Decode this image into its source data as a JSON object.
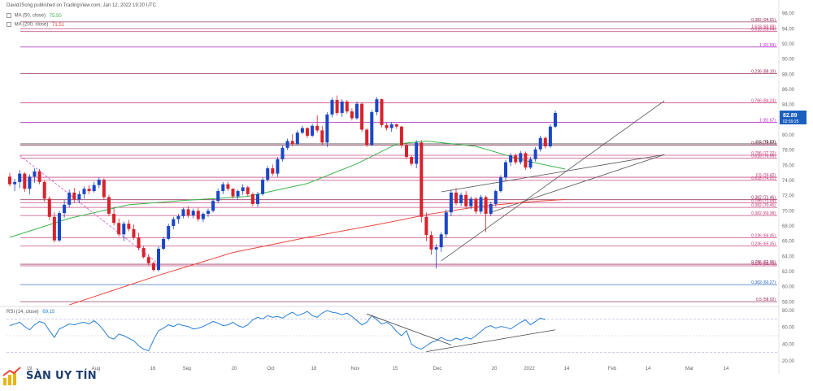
{
  "header": {
    "publisher": "DavidJSong published on TradingView.com, Jan 12, 2022 19:20 UTC"
  },
  "indicators": [
    {
      "label": "MA (50, close)",
      "value": "75.50",
      "color": "#3cb54a"
    },
    {
      "label": "MA (200, close)",
      "value": "71.51",
      "color": "#e8473c"
    }
  ],
  "rsi_legend": {
    "label": "RSI (14, close)",
    "value": "69.15"
  },
  "price_marker": {
    "value": "82.89",
    "sub": "02:59:25"
  },
  "watermark": {
    "text": "SÀN UY TÍN"
  },
  "chart_data": [
    {
      "type": "candlestick",
      "x_tick_labels": [
        "19",
        "Aug",
        "16",
        "Sep",
        "20",
        "Oct",
        "18",
        "Nov",
        "15",
        "Dec",
        "20",
        "2022",
        "14",
        "Feb",
        "14",
        "Mar",
        "14"
      ],
      "y_tick_labels": [
        "58.00",
        "60.00",
        "62.00",
        "64.00",
        "66.00",
        "68.00",
        "70.00",
        "72.00",
        "74.00",
        "76.00",
        "78.00",
        "80.00",
        "82.00",
        "84.00",
        "86.00",
        "88.00",
        "90.00",
        "92.00",
        "94.00",
        "96.00"
      ],
      "ylim": [
        57.5,
        96.5
      ],
      "levels": [
        {
          "label": "0.382 (94.91)",
          "y": 94.91,
          "color": "#8a1c4a"
        },
        {
          "label": "1.618 (93.98)",
          "y": 93.98,
          "color": "#c03070"
        },
        {
          "label": "0.618 (93.64)",
          "y": 93.64,
          "color": "#c03070"
        },
        {
          "label": "1 (91.59)",
          "y": 91.59,
          "color": "#b020c0"
        },
        {
          "label": "0.236 (88.10)",
          "y": 88.1,
          "color": "#8a1c4a"
        },
        {
          "label": "0.786 (84.24)",
          "y": 84.24,
          "color": "#c03070"
        },
        {
          "label": "1 (81.67)",
          "y": 81.67,
          "color": "#b020c0"
        },
        {
          "label": "0.5 (78.83)",
          "y": 78.83,
          "color": "#444444"
        },
        {
          "label": "0.618 (78.67)",
          "y": 78.67,
          "color": "#8a1c4a"
        },
        {
          "label": "0.786 (77.32)",
          "y": 77.32,
          "color": "#c03070"
        },
        {
          "label": "0.618 (76.96)",
          "y": 76.96,
          "color": "#c03070"
        },
        {
          "label": "0.5 (74.42)",
          "y": 74.42,
          "color": "#c03070"
        },
        {
          "label": "0.618 (74.01)",
          "y": 74.01,
          "color": "#c03070"
        },
        {
          "label": "0.382 (71.46)",
          "y": 71.46,
          "color": "#8a1c4a"
        },
        {
          "label": "0.786 (71.04)",
          "y": 71.04,
          "color": "#c03070"
        },
        {
          "label": "0.382 (70.45)",
          "y": 70.45,
          "color": "#c03070"
        },
        {
          "label": "0.382 (69.38)",
          "y": 69.38,
          "color": "#c03070"
        },
        {
          "label": "0.236 (66.45)",
          "y": 66.45,
          "color": "#c03070"
        },
        {
          "label": "0.236 (65.35)",
          "y": 65.35,
          "color": "#c03070"
        },
        {
          "label": "0.786 (62.96)",
          "y": 62.96,
          "color": "#8a1c4a"
        },
        {
          "label": "0.236 (62.75)",
          "y": 62.75,
          "color": "#c03070"
        },
        {
          "label": "0.382 (60.27)",
          "y": 60.27,
          "color": "#1f5fc0"
        },
        {
          "label": "0.5 (58.02)",
          "y": 58.02,
          "color": "#8a1c4a"
        }
      ],
      "candles": [
        [
          74.5,
          75.0,
          73.2,
          73.5
        ],
        [
          73.5,
          74.2,
          72.6,
          73.8
        ],
        [
          73.8,
          75.4,
          73.0,
          74.9
        ],
        [
          74.9,
          75.1,
          72.5,
          72.9
        ],
        [
          72.9,
          74.8,
          72.2,
          74.5
        ],
        [
          74.5,
          75.6,
          73.7,
          75.2
        ],
        [
          75.2,
          75.5,
          73.5,
          73.8
        ],
        [
          73.8,
          74.0,
          71.2,
          71.6
        ],
        [
          71.6,
          71.9,
          68.8,
          69.2
        ],
        [
          69.2,
          69.8,
          65.8,
          66.1
        ],
        [
          66.1,
          70.0,
          65.9,
          69.7
        ],
        [
          69.7,
          71.4,
          69.1,
          70.8
        ],
        [
          70.8,
          72.8,
          70.4,
          72.4
        ],
        [
          72.4,
          73.0,
          71.1,
          71.5
        ],
        [
          71.5,
          72.6,
          71.0,
          72.2
        ],
        [
          72.2,
          73.2,
          71.6,
          72.9
        ],
        [
          72.9,
          73.4,
          72.2,
          72.6
        ],
        [
          72.6,
          73.8,
          72.4,
          73.4
        ],
        [
          73.4,
          74.4,
          73.0,
          74.1
        ],
        [
          74.1,
          74.3,
          71.5,
          71.8
        ],
        [
          71.8,
          72.1,
          69.3,
          69.6
        ],
        [
          69.6,
          70.3,
          68.1,
          68.4
        ],
        [
          68.4,
          69.0,
          66.6,
          66.9
        ],
        [
          66.9,
          68.6,
          66.0,
          68.3
        ],
        [
          68.3,
          68.8,
          67.3,
          67.6
        ],
        [
          67.6,
          68.2,
          66.2,
          66.5
        ],
        [
          66.5,
          67.1,
          64.8,
          65.1
        ],
        [
          65.1,
          65.4,
          63.7,
          63.9
        ],
        [
          63.9,
          64.3,
          62.8,
          63.1
        ],
        [
          63.1,
          63.3,
          62.0,
          62.2
        ],
        [
          62.2,
          65.3,
          62.0,
          65.0
        ],
        [
          65.0,
          66.6,
          64.8,
          66.3
        ],
        [
          66.3,
          68.3,
          66.1,
          68.0
        ],
        [
          68.0,
          69.2,
          67.6,
          68.9
        ],
        [
          68.9,
          69.6,
          68.3,
          69.3
        ],
        [
          69.3,
          70.4,
          69.0,
          70.2
        ],
        [
          70.2,
          70.6,
          69.1,
          69.4
        ],
        [
          69.4,
          70.3,
          69.0,
          70.0
        ],
        [
          70.0,
          70.4,
          68.6,
          68.9
        ],
        [
          68.9,
          69.8,
          68.5,
          69.6
        ],
        [
          69.6,
          70.3,
          69.2,
          70.0
        ],
        [
          70.0,
          71.6,
          69.8,
          71.3
        ],
        [
          71.3,
          72.9,
          71.0,
          72.6
        ],
        [
          72.6,
          73.8,
          72.2,
          73.5
        ],
        [
          73.5,
          73.8,
          72.6,
          72.9
        ],
        [
          72.9,
          73.0,
          71.6,
          71.9
        ],
        [
          71.9,
          72.8,
          71.5,
          72.6
        ],
        [
          72.6,
          73.5,
          72.1,
          73.1
        ],
        [
          73.1,
          73.3,
          71.9,
          72.2
        ],
        [
          72.2,
          72.4,
          70.6,
          70.9
        ],
        [
          70.9,
          72.5,
          70.5,
          72.2
        ],
        [
          72.2,
          74.4,
          72.0,
          74.1
        ],
        [
          74.1,
          75.9,
          73.8,
          75.6
        ],
        [
          75.6,
          76.1,
          74.6,
          74.9
        ],
        [
          74.9,
          77.1,
          74.5,
          76.8
        ],
        [
          76.8,
          78.6,
          76.5,
          78.3
        ],
        [
          78.3,
          79.5,
          78.0,
          79.2
        ],
        [
          79.2,
          80.1,
          78.5,
          78.8
        ],
        [
          78.8,
          80.6,
          78.6,
          80.3
        ],
        [
          80.3,
          81.2,
          80.1,
          80.9
        ],
        [
          80.9,
          81.0,
          79.6,
          79.9
        ],
        [
          79.9,
          81.5,
          79.7,
          81.2
        ],
        [
          81.2,
          82.6,
          80.3,
          80.6
        ],
        [
          80.6,
          81.2,
          78.7,
          79.0
        ],
        [
          79.0,
          83.0,
          78.4,
          82.7
        ],
        [
          82.7,
          84.9,
          82.3,
          84.6
        ],
        [
          84.6,
          85.2,
          82.6,
          82.9
        ],
        [
          82.9,
          84.7,
          82.4,
          84.4
        ],
        [
          84.4,
          84.6,
          82.8,
          83.1
        ],
        [
          83.1,
          83.5,
          81.9,
          82.2
        ],
        [
          82.2,
          84.4,
          82.0,
          84.1
        ],
        [
          84.1,
          84.3,
          80.4,
          80.7
        ],
        [
          80.7,
          80.9,
          78.4,
          78.7
        ],
        [
          78.7,
          83.3,
          78.5,
          83.0
        ],
        [
          83.0,
          85.0,
          82.6,
          84.7
        ],
        [
          84.7,
          84.8,
          81.0,
          81.3
        ],
        [
          81.3,
          81.6,
          80.6,
          80.9
        ],
        [
          80.9,
          81.7,
          80.4,
          81.4
        ],
        [
          81.4,
          81.5,
          80.8,
          81.1
        ],
        [
          81.1,
          81.2,
          78.3,
          78.6
        ],
        [
          78.6,
          78.9,
          76.8,
          77.1
        ],
        [
          77.1,
          77.3,
          75.9,
          76.2
        ],
        [
          76.2,
          79.3,
          75.6,
          79.0
        ],
        [
          79.0,
          79.3,
          68.5,
          69.2
        ],
        [
          69.2,
          69.8,
          66.0,
          66.8
        ],
        [
          66.8,
          67.3,
          64.2,
          64.9
        ],
        [
          64.9,
          65.6,
          62.4,
          65.2
        ],
        [
          65.2,
          67.2,
          64.6,
          66.9
        ],
        [
          66.9,
          70.2,
          66.5,
          69.8
        ],
        [
          69.8,
          72.8,
          69.3,
          72.4
        ],
        [
          72.4,
          73.0,
          70.7,
          71.0
        ],
        [
          71.0,
          72.4,
          70.6,
          72.1
        ],
        [
          72.1,
          72.6,
          70.3,
          70.6
        ],
        [
          70.6,
          71.9,
          70.2,
          71.6
        ],
        [
          71.6,
          71.8,
          69.6,
          69.9
        ],
        [
          69.9,
          72.1,
          69.6,
          71.8
        ],
        [
          71.8,
          72.0,
          67.2,
          69.6
        ],
        [
          69.6,
          71.2,
          69.3,
          70.9
        ],
        [
          70.9,
          72.8,
          70.6,
          72.6
        ],
        [
          72.6,
          74.7,
          72.4,
          74.4
        ],
        [
          74.4,
          76.7,
          74.1,
          76.4
        ],
        [
          76.4,
          77.6,
          75.9,
          77.3
        ],
        [
          77.3,
          77.6,
          76.1,
          76.4
        ],
        [
          76.4,
          77.9,
          76.1,
          77.6
        ],
        [
          77.6,
          77.8,
          75.4,
          75.7
        ],
        [
          75.7,
          77.1,
          75.5,
          76.8
        ],
        [
          76.8,
          78.4,
          76.5,
          78.1
        ],
        [
          78.1,
          79.9,
          77.8,
          79.6
        ],
        [
          79.6,
          79.8,
          78.2,
          78.5
        ],
        [
          78.5,
          81.4,
          78.3,
          81.1
        ],
        [
          81.1,
          83.2,
          80.9,
          82.9
        ]
      ],
      "ma50": [
        [
          0,
          66.5
        ],
        [
          12,
          69.0
        ],
        [
          24,
          70.8
        ],
        [
          36,
          71.4
        ],
        [
          48,
          71.9
        ],
        [
          60,
          73.6
        ],
        [
          70,
          76.2
        ],
        [
          78,
          78.8
        ],
        [
          84,
          79.2
        ],
        [
          94,
          78.5
        ],
        [
          104,
          76.6
        ],
        [
          112,
          75.5
        ]
      ],
      "ma200": [
        [
          12,
          57.6
        ],
        [
          30,
          61.5
        ],
        [
          45,
          64.5
        ],
        [
          60,
          66.5
        ],
        [
          75,
          68.3
        ],
        [
          85,
          69.6
        ],
        [
          95,
          70.6
        ],
        [
          105,
          71.2
        ],
        [
          112,
          71.5
        ]
      ],
      "trendlines": [
        {
          "from": [
            2,
            77.3
          ],
          "to": [
            30,
            63.0
          ]
        },
        {
          "from": [
            87,
            63.4
          ],
          "to": [
            132,
            84.5
          ]
        },
        {
          "from": [
            87,
            72.5
          ],
          "to": [
            132,
            77.4
          ]
        },
        {
          "from": [
            97,
            69.8
          ],
          "to": [
            132,
            77.4
          ]
        }
      ]
    },
    {
      "type": "line",
      "series": [
        {
          "name": "",
          "values": [
            62,
            64,
            66,
            61,
            57,
            63,
            67,
            65,
            56,
            48,
            58,
            61,
            64,
            63,
            65,
            66,
            64,
            68,
            63,
            56,
            48,
            46,
            52,
            50,
            47,
            44,
            38,
            34,
            32,
            45,
            56,
            59,
            63,
            61,
            64,
            62,
            61,
            58,
            59,
            61,
            64,
            67,
            65,
            62,
            63,
            66,
            62,
            60,
            63,
            69,
            72,
            70,
            74,
            72,
            73,
            71,
            75,
            78,
            74,
            76,
            79,
            74,
            72,
            77,
            80,
            78,
            77,
            75,
            77,
            73,
            68,
            63,
            66,
            74,
            69,
            64,
            66,
            62,
            55,
            50,
            56,
            40,
            36,
            34,
            38,
            42,
            44,
            48,
            45,
            44,
            47,
            45,
            48,
            46,
            50,
            55,
            60,
            62,
            59,
            61,
            60,
            58,
            62,
            66,
            69,
            63,
            67,
            71,
            69.15
          ]
        }
      ],
      "y_tick_labels": [
        "80.00",
        "60.00",
        "40.00",
        "20.00"
      ],
      "ylim": [
        18,
        82
      ],
      "divergence_lines": [
        {
          "from": [
            72,
            76
          ],
          "to": [
            89,
            39
          ]
        },
        {
          "from": [
            84,
            31
          ],
          "to": [
            110,
            57
          ]
        }
      ]
    }
  ]
}
